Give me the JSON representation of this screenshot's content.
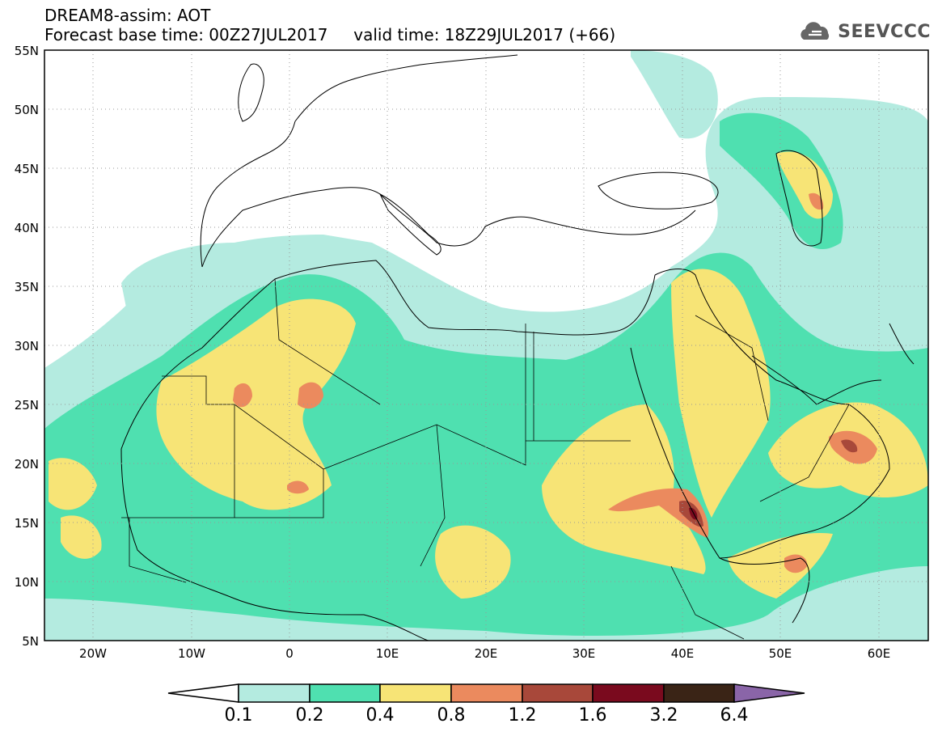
{
  "title": {
    "line1": "DREAM8-assim: AOT",
    "line2": "Forecast base time: 00Z27JUL2017     valid time: 18Z29JUL2017 (+66)"
  },
  "brand": {
    "logo_icon": "cloud-logo-icon",
    "name": "SEEVCCC"
  },
  "axes": {
    "lat_labels": [
      "55N",
      "50N",
      "45N",
      "40N",
      "35N",
      "30N",
      "25N",
      "20N",
      "15N",
      "10N",
      "5N"
    ],
    "lon_labels": [
      "20W",
      "10W",
      "0",
      "10E",
      "20E",
      "30E",
      "40E",
      "50E",
      "60E"
    ],
    "lat_range": [
      5,
      55
    ],
    "lon_range": [
      -25,
      65
    ]
  },
  "colorbar": {
    "labels": [
      "0.1",
      "0.2",
      "0.4",
      "0.8",
      "1.2",
      "1.6",
      "3.2",
      "6.4"
    ],
    "colors": [
      "#ffffff",
      "#b4ebe0",
      "#4fe0b0",
      "#f7e476",
      "#eb8a5e",
      "#a8483a",
      "#7a0a1e",
      "#3a2416",
      "#8a65a8"
    ]
  }
}
